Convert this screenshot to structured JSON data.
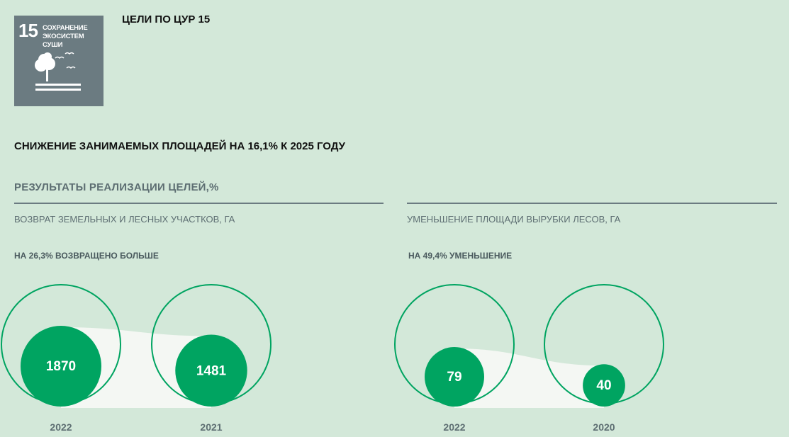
{
  "sdg": {
    "number": "15",
    "label": "СОХРАНЕНИЕ ЭКОСИСТЕМ СУШИ",
    "icon": "tree-birds-icon",
    "tile_color": "#6b7b81"
  },
  "header": {
    "title": "ЦЕЛИ ПО ЦУР 15"
  },
  "target": {
    "text": "СНИЖЕНИЕ ЗАНИМАЕМЫХ ПЛОЩАДЕЙ НА 16,1% К 2025 ГОДУ"
  },
  "results": {
    "title": "РЕЗУЛЬТАТЫ РЕАЛИЗАЦИИ ЦЕЛЕЙ,%"
  },
  "colors": {
    "bubble": "#00a461",
    "outline": "#00a461",
    "band": "#f4f7f3",
    "background": "#d3e8d9"
  },
  "chart_data": [
    {
      "type": "bubble",
      "title": "ВОЗВРАТ ЗЕМЕЛЬНЫХ И ЛЕСНЫХ УЧАСТКОВ, ГА",
      "note": "НА 26,3% ВОЗВРАЩЕНО БОЛЬШЕ",
      "categories": [
        "2022",
        "2021"
      ],
      "values": [
        1870,
        1481
      ],
      "labels": [
        "1870",
        "1481"
      ]
    },
    {
      "type": "bubble",
      "title": "УМЕНЬШЕНИЕ ПЛОЩАДИ ВЫРУБКИ ЛЕСОВ, ГА",
      "note": "НА 49,4% УМЕНЬШЕНИЕ",
      "categories": [
        "2022",
        "2020"
      ],
      "values": [
        79,
        40
      ],
      "labels": [
        "79",
        "40"
      ]
    }
  ]
}
